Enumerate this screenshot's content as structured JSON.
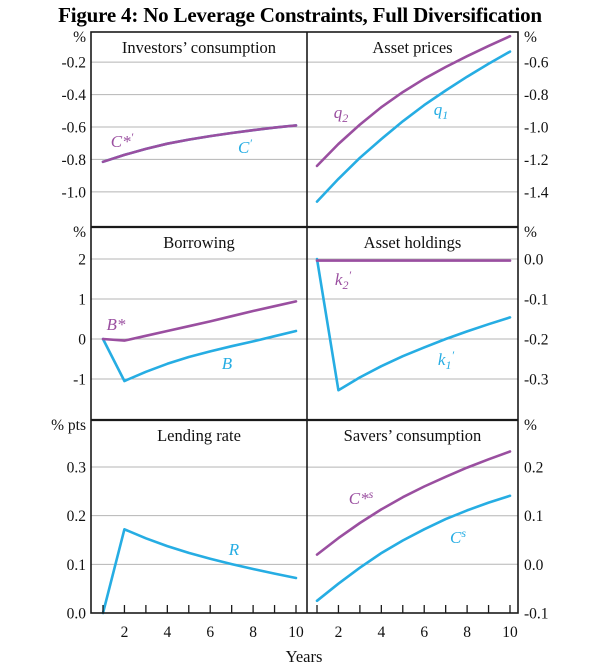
{
  "title": "Figure 4: No Leverage Constraints, Full Diversification",
  "colors": {
    "purple": "#9a4fa0",
    "cyan": "#26ade3",
    "grid": "#b5b5b5",
    "ink": "#1a1a1a",
    "text": "#111111"
  },
  "chart_data": {
    "type": "line",
    "xlabel": "Years",
    "x": [
      1,
      2,
      3,
      4,
      5,
      6,
      7,
      8,
      9,
      10
    ],
    "x_axis": {
      "ticks": [
        1,
        2,
        3,
        4,
        5,
        6,
        7,
        8,
        9,
        10
      ],
      "labeled": [
        2,
        4,
        6,
        8,
        10
      ]
    },
    "panels": [
      {
        "id": "investors-consumption",
        "title": "Investors’ consumption",
        "col": 0,
        "row": 0,
        "axis_side": "left",
        "axis_unit": "%",
        "yticks": [
          -0.2,
          -0.4,
          -0.6,
          -0.8,
          -1.0
        ],
        "ytick_labels": [
          "-0.2",
          "-0.4",
          "-0.6",
          "-0.8",
          "-1.0"
        ],
        "ylim_top_bottom": [
          -0.014,
          -1.217
        ],
        "series": [
          {
            "id": "C-prime",
            "color": "cyan",
            "values": [
              -0.815,
              -0.772,
              -0.735,
              -0.703,
              -0.678,
              -0.656,
              -0.637,
              -0.62,
              -0.604,
              -0.59
            ],
            "label": {
              "x": 245,
              "y": 148,
              "parts": [
                {
                  "t": "C"
                },
                {
                  "t": "′",
                  "p": "sup"
                }
              ]
            }
          },
          {
            "id": "C-star-prime",
            "color": "purple",
            "values": [
              -0.815,
              -0.772,
              -0.735,
              -0.703,
              -0.678,
              -0.656,
              -0.637,
              -0.62,
              -0.604,
              -0.59
            ],
            "label": {
              "x": 122,
              "y": 142,
              "parts": [
                {
                  "t": "C*"
                },
                {
                  "t": "′",
                  "p": "sup"
                }
              ]
            }
          }
        ]
      },
      {
        "id": "asset-prices",
        "title": "Asset prices",
        "col": 1,
        "row": 0,
        "axis_side": "right",
        "axis_unit": "%",
        "yticks": [
          -0.6,
          -0.8,
          -1.0,
          -1.2,
          -1.4
        ],
        "ytick_labels": [
          "-0.6",
          "-0.8",
          "-1.0",
          "-1.2",
          "-1.4"
        ],
        "ylim_top_bottom": [
          -0.414,
          -1.617
        ],
        "series": [
          {
            "id": "q1",
            "color": "cyan",
            "values": [
              -1.46,
              -1.32,
              -1.19,
              -1.075,
              -0.965,
              -0.865,
              -0.775,
              -0.69,
              -0.61,
              -0.535
            ],
            "label": {
              "x": 441,
              "y": 110,
              "parts": [
                {
                  "t": "q"
                },
                {
                  "t": "1",
                  "p": "sub"
                }
              ]
            }
          },
          {
            "id": "q2",
            "color": "purple",
            "values": [
              -1.24,
              -1.105,
              -0.985,
              -0.878,
              -0.785,
              -0.703,
              -0.63,
              -0.563,
              -0.5,
              -0.44
            ],
            "label": {
              "x": 341,
              "y": 113,
              "parts": [
                {
                  "t": "q"
                },
                {
                  "t": "2",
                  "p": "sub"
                }
              ]
            }
          }
        ]
      },
      {
        "id": "borrowing",
        "title": "Borrowing",
        "col": 0,
        "row": 1,
        "axis_side": "left",
        "axis_unit": "%",
        "yticks": [
          2,
          1,
          0,
          -1
        ],
        "ytick_labels": [
          "2",
          "1",
          "0",
          "-1"
        ],
        "ylim_top_bottom": [
          2.8,
          -2.025
        ],
        "series": [
          {
            "id": "B",
            "color": "cyan",
            "values": [
              0,
              -1.05,
              -0.82,
              -0.62,
              -0.45,
              -0.31,
              -0.18,
              -0.06,
              0.07,
              0.2
            ],
            "label": {
              "x": 227,
              "y": 364,
              "parts": [
                {
                  "t": "B"
                }
              ]
            }
          },
          {
            "id": "B-star",
            "color": "purple",
            "values": [
              0,
              -0.04,
              0.08,
              0.2,
              0.32,
              0.44,
              0.57,
              0.7,
              0.82,
              0.94
            ],
            "label": {
              "x": 116,
              "y": 325,
              "parts": [
                {
                  "t": "B*"
                }
              ]
            }
          }
        ]
      },
      {
        "id": "asset-holdings",
        "title": "Asset holdings",
        "col": 1,
        "row": 1,
        "axis_side": "right",
        "axis_unit": "%",
        "yticks": [
          0.0,
          -0.1,
          -0.2,
          -0.3
        ],
        "ytick_labels": [
          "0.0",
          "-0.1",
          "-0.2",
          "-0.3"
        ],
        "ylim_top_bottom": [
          0.08,
          -0.4025
        ],
        "series": [
          {
            "id": "k1-prime",
            "color": "cyan",
            "values": [
              0,
              -0.328,
              -0.296,
              -0.268,
              -0.243,
              -0.221,
              -0.2,
              -0.181,
              -0.163,
              -0.146
            ],
            "label": {
              "x": 446,
              "y": 360,
              "parts": [
                {
                  "t": "k"
                },
                {
                  "t": "1",
                  "p": "sub"
                },
                {
                  "t": "′",
                  "p": "sup"
                }
              ]
            }
          },
          {
            "id": "k2-prime",
            "color": "purple",
            "values": [
              -0.004,
              -0.004,
              -0.004,
              -0.004,
              -0.004,
              -0.004,
              -0.004,
              -0.004,
              -0.004,
              -0.004
            ],
            "label": {
              "x": 343,
              "y": 280,
              "parts": [
                {
                  "t": "k"
                },
                {
                  "t": "2",
                  "p": "sub"
                },
                {
                  "t": "′",
                  "p": "sup"
                }
              ]
            }
          }
        ]
      },
      {
        "id": "lending-rate",
        "title": "Lending rate",
        "col": 0,
        "row": 2,
        "axis_side": "left",
        "axis_unit": "% pts",
        "yticks": [
          0.3,
          0.2,
          0.1,
          0.0
        ],
        "ytick_labels": [
          "0.3",
          "0.2",
          "0.1",
          "0.0"
        ],
        "ylim_top_bottom": [
          0.3966,
          0.0
        ],
        "series": [
          {
            "id": "R",
            "color": "cyan",
            "values": [
              0,
              0.172,
              0.1535,
              0.1375,
              0.1235,
              0.1115,
              0.1005,
              0.0905,
              0.081,
              0.072
            ],
            "label": {
              "x": 234,
              "y": 550,
              "parts": [
                {
                  "t": "R"
                }
              ]
            }
          }
        ]
      },
      {
        "id": "savers-consumption",
        "title": "Savers’ consumption",
        "col": 1,
        "row": 2,
        "axis_side": "right",
        "axis_unit": "%",
        "yticks": [
          0.2,
          0.1,
          0.0,
          -0.1
        ],
        "ytick_labels": [
          "0.2",
          "0.1",
          "0.0",
          "-0.1"
        ],
        "ylim_top_bottom": [
          0.2969,
          -0.1002
        ],
        "series": [
          {
            "id": "C-s",
            "color": "cyan",
            "values": [
              -0.075,
              -0.04,
              -0.007,
              0.023,
              0.049,
              0.072,
              0.093,
              0.111,
              0.127,
              0.141
            ],
            "label": {
              "x": 458,
              "y": 538,
              "parts": [
                {
                  "t": "C"
                },
                {
                  "t": "s",
                  "p": "sup"
                }
              ]
            }
          },
          {
            "id": "C-star-s",
            "color": "purple",
            "values": [
              0.02,
              0.054,
              0.085,
              0.113,
              0.138,
              0.16,
              0.18,
              0.199,
              0.216,
              0.232
            ],
            "label": {
              "x": 361,
              "y": 499,
              "parts": [
                {
                  "t": "C*"
                },
                {
                  "t": "s",
                  "p": "sup"
                }
              ]
            }
          }
        ]
      }
    ]
  }
}
